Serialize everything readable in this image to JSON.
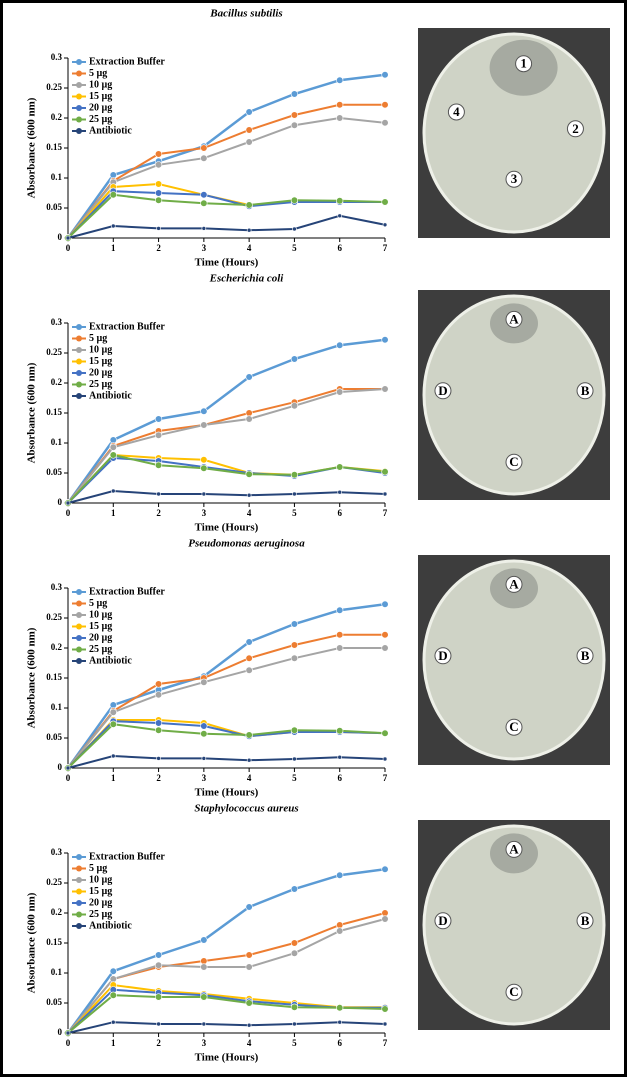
{
  "chart_data": [
    {
      "type": "line",
      "title": "Bacillus subtilis",
      "x_label": "Time (Hours)",
      "y_label": "Absorbance (600 nm)",
      "x": [
        0,
        1,
        2,
        3,
        4,
        5,
        6,
        7
      ],
      "xlim": [
        0,
        7
      ],
      "xticks": [
        0,
        1,
        2,
        3,
        4,
        5,
        6,
        7
      ],
      "ylim": [
        0,
        0.3
      ],
      "yticks": [
        0,
        0.05,
        0.1,
        0.15,
        0.2,
        0.25,
        0.3
      ],
      "series": [
        {
          "name": "Extraction Buffer",
          "color": "#5b9bd5",
          "values": [
            0,
            0.105,
            0.128,
            0.153,
            0.21,
            0.24,
            0.263,
            0.272
          ]
        },
        {
          "name": "5 µg",
          "color": "#ed7d31",
          "values": [
            0,
            0.095,
            0.14,
            0.15,
            0.18,
            0.205,
            0.222,
            0.222
          ]
        },
        {
          "name": "10 µg",
          "color": "#a5a5a5",
          "values": [
            0,
            0.093,
            0.122,
            0.133,
            0.16,
            0.188,
            0.2,
            0.192
          ]
        },
        {
          "name": "15 µg",
          "color": "#ffc000",
          "values": [
            0,
            0.085,
            0.09,
            0.072,
            0.055,
            0.06,
            0.06,
            0.06
          ]
        },
        {
          "name": "20 µg",
          "color": "#4472c4",
          "values": [
            0,
            0.078,
            0.075,
            0.072,
            0.053,
            0.06,
            0.06,
            0.06
          ]
        },
        {
          "name": "25 µg",
          "color": "#70ad47",
          "values": [
            0,
            0.072,
            0.063,
            0.058,
            0.055,
            0.063,
            0.062,
            0.06
          ]
        },
        {
          "name": "Antibiotic",
          "color": "#264478",
          "values": [
            0,
            0.02,
            0.016,
            0.016,
            0.013,
            0.015,
            0.037,
            0.022
          ]
        }
      ]
    },
    {
      "type": "line",
      "title": "Escherichia coli",
      "x_label": "Time (Hours)",
      "y_label": "Absorbance (600 nm)",
      "x": [
        0,
        1,
        2,
        3,
        4,
        5,
        6,
        7
      ],
      "xlim": [
        0,
        7
      ],
      "xticks": [
        0,
        1,
        2,
        3,
        4,
        5,
        6,
        7
      ],
      "ylim": [
        0,
        0.3
      ],
      "yticks": [
        0,
        0.05,
        0.1,
        0.15,
        0.2,
        0.25,
        0.3
      ],
      "series": [
        {
          "name": "Extraction Buffer",
          "color": "#5b9bd5",
          "values": [
            0,
            0.105,
            0.14,
            0.153,
            0.21,
            0.24,
            0.263,
            0.272
          ]
        },
        {
          "name": "5 µg",
          "color": "#ed7d31",
          "values": [
            0,
            0.095,
            0.12,
            0.13,
            0.15,
            0.168,
            0.19,
            0.19
          ]
        },
        {
          "name": "10 µg",
          "color": "#a5a5a5",
          "values": [
            0,
            0.093,
            0.113,
            0.13,
            0.14,
            0.162,
            0.185,
            0.19
          ]
        },
        {
          "name": "15 µg",
          "color": "#ffc000",
          "values": [
            0,
            0.08,
            0.075,
            0.072,
            0.05,
            0.047,
            0.06,
            0.053
          ]
        },
        {
          "name": "20 µg",
          "color": "#4472c4",
          "values": [
            0,
            0.075,
            0.07,
            0.06,
            0.05,
            0.045,
            0.06,
            0.05
          ]
        },
        {
          "name": "25 µg",
          "color": "#70ad47",
          "values": [
            0,
            0.08,
            0.063,
            0.058,
            0.048,
            0.047,
            0.06,
            0.052
          ]
        },
        {
          "name": "Antibiotic",
          "color": "#264478",
          "values": [
            0,
            0.02,
            0.015,
            0.015,
            0.013,
            0.015,
            0.018,
            0.015
          ]
        }
      ]
    },
    {
      "type": "line",
      "title": "Pseudomonas aeruginosa",
      "x_label": "Time (Hours)",
      "y_label": "Absorbance (600 nm)",
      "x": [
        0,
        1,
        2,
        3,
        4,
        5,
        6,
        7
      ],
      "xlim": [
        0,
        7
      ],
      "xticks": [
        0,
        1,
        2,
        3,
        4,
        5,
        6,
        7
      ],
      "ylim": [
        0,
        0.3
      ],
      "yticks": [
        0,
        0.05,
        0.1,
        0.15,
        0.2,
        0.25,
        0.3
      ],
      "series": [
        {
          "name": "Extraction Buffer",
          "color": "#5b9bd5",
          "values": [
            0,
            0.105,
            0.13,
            0.153,
            0.21,
            0.24,
            0.263,
            0.273
          ]
        },
        {
          "name": "5 µg",
          "color": "#ed7d31",
          "values": [
            0,
            0.095,
            0.14,
            0.15,
            0.183,
            0.205,
            0.222,
            0.222
          ]
        },
        {
          "name": "10 µg",
          "color": "#a5a5a5",
          "values": [
            0,
            0.093,
            0.122,
            0.143,
            0.163,
            0.183,
            0.2,
            0.2
          ]
        },
        {
          "name": "15 µg",
          "color": "#ffc000",
          "values": [
            0,
            0.08,
            0.08,
            0.075,
            0.053,
            0.06,
            0.06,
            0.058
          ]
        },
        {
          "name": "20 µg",
          "color": "#4472c4",
          "values": [
            0,
            0.078,
            0.075,
            0.07,
            0.053,
            0.06,
            0.06,
            0.058
          ]
        },
        {
          "name": "25 µg",
          "color": "#70ad47",
          "values": [
            0,
            0.073,
            0.063,
            0.057,
            0.055,
            0.063,
            0.062,
            0.058
          ]
        },
        {
          "name": "Antibiotic",
          "color": "#264478",
          "values": [
            0,
            0.02,
            0.016,
            0.016,
            0.013,
            0.015,
            0.018,
            0.015
          ]
        }
      ]
    },
    {
      "type": "line",
      "title": "Staphylococcus aureus",
      "x_label": "Time (Hours)",
      "y_label": "Absorbance (600 nm)",
      "x": [
        0,
        1,
        2,
        3,
        4,
        5,
        6,
        7
      ],
      "xlim": [
        0,
        7
      ],
      "xticks": [
        0,
        1,
        2,
        3,
        4,
        5,
        6,
        7
      ],
      "ylim": [
        0,
        0.3
      ],
      "yticks": [
        0,
        0.05,
        0.1,
        0.15,
        0.2,
        0.25,
        0.3
      ],
      "series": [
        {
          "name": "Extraction Buffer",
          "color": "#5b9bd5",
          "values": [
            0,
            0.103,
            0.13,
            0.155,
            0.21,
            0.24,
            0.263,
            0.273
          ]
        },
        {
          "name": "5 µg",
          "color": "#ed7d31",
          "values": [
            0,
            0.09,
            0.11,
            0.12,
            0.13,
            0.15,
            0.18,
            0.2
          ]
        },
        {
          "name": "10 µg",
          "color": "#a5a5a5",
          "values": [
            0,
            0.09,
            0.113,
            0.11,
            0.11,
            0.133,
            0.17,
            0.19
          ]
        },
        {
          "name": "15 µg",
          "color": "#ffc000",
          "values": [
            0,
            0.08,
            0.07,
            0.065,
            0.057,
            0.05,
            0.043,
            0.043
          ]
        },
        {
          "name": "20 µg",
          "color": "#4472c4",
          "values": [
            0,
            0.072,
            0.067,
            0.063,
            0.053,
            0.047,
            0.042,
            0.042
          ]
        },
        {
          "name": "25 µg",
          "color": "#70ad47",
          "values": [
            0,
            0.063,
            0.06,
            0.06,
            0.05,
            0.043,
            0.042,
            0.04
          ]
        },
        {
          "name": "Antibiotic",
          "color": "#264478",
          "values": [
            0,
            0.018,
            0.015,
            0.015,
            0.013,
            0.015,
            0.018,
            0.015
          ]
        }
      ]
    }
  ],
  "plates": [
    {
      "labels": [
        "1",
        "2",
        "3",
        "4"
      ]
    },
    {
      "labels": [
        "A",
        "B",
        "C",
        "D"
      ]
    },
    {
      "labels": [
        "A",
        "B",
        "C",
        "D"
      ]
    },
    {
      "labels": [
        "A",
        "B",
        "C",
        "D"
      ]
    }
  ]
}
